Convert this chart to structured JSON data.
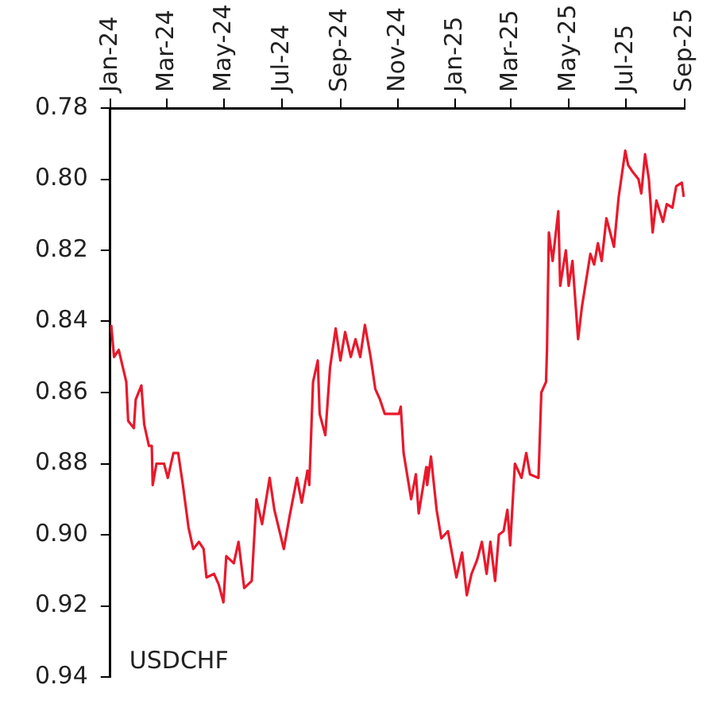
{
  "chart_data": {
    "type": "line",
    "annotations": [
      "USDCHF"
    ],
    "x": [
      "2024-01-02",
      "2024-01-05",
      "2024-01-10",
      "2024-01-18",
      "2024-01-20",
      "2024-01-26",
      "2024-01-28",
      "2024-02-03",
      "2024-02-06",
      "2024-02-11",
      "2024-02-14",
      "2024-02-15",
      "2024-02-19",
      "2024-02-27",
      "2024-03-02",
      "2024-03-08",
      "2024-03-13",
      "2024-03-18",
      "2024-03-24",
      "2024-03-29",
      "2024-04-04",
      "2024-04-09",
      "2024-04-12",
      "2024-04-20",
      "2024-04-25",
      "2024-04-30",
      "2024-05-03",
      "2024-05-11",
      "2024-05-16",
      "2024-05-22",
      "2024-05-30",
      "2024-06-04",
      "2024-06-10",
      "2024-06-18",
      "2024-06-23",
      "2024-07-03",
      "2024-07-09",
      "2024-07-17",
      "2024-07-22",
      "2024-07-28",
      "2024-07-30",
      "2024-08-03",
      "2024-08-08",
      "2024-08-10",
      "2024-08-16",
      "2024-08-21",
      "2024-08-27",
      "2024-09-01",
      "2024-09-06",
      "2024-09-12",
      "2024-09-17",
      "2024-09-22",
      "2024-09-27",
      "2024-10-03",
      "2024-10-08",
      "2024-10-13",
      "2024-10-18",
      "2024-11-02",
      "2024-11-04",
      "2024-11-07",
      "2024-11-15",
      "2024-11-20",
      "2024-11-23",
      "2024-12-01",
      "2024-12-02",
      "2024-12-06",
      "2024-12-12",
      "2024-12-17",
      "2024-12-24",
      "2025-01-02",
      "2025-01-08",
      "2025-01-13",
      "2025-01-18",
      "2025-01-24",
      "2025-01-29",
      "2025-02-03",
      "2025-02-07",
      "2025-02-12",
      "2025-02-16",
      "2025-02-21",
      "2025-02-25",
      "2025-02-28",
      "2025-03-05",
      "2025-03-12",
      "2025-03-17",
      "2025-03-21",
      "2025-03-30",
      "2025-04-02",
      "2025-04-07",
      "2025-04-08",
      "2025-04-10",
      "2025-04-14",
      "2025-04-20",
      "2025-04-22",
      "2025-04-28",
      "2025-05-01",
      "2025-05-05",
      "2025-05-11",
      "2025-05-15",
      "2025-05-21",
      "2025-05-24",
      "2025-05-28",
      "2025-06-01",
      "2025-06-05",
      "2025-06-10",
      "2025-06-18",
      "2025-06-23",
      "2025-06-30",
      "2025-07-03",
      "2025-07-08",
      "2025-07-14",
      "2025-07-17",
      "2025-07-21",
      "2025-07-25",
      "2025-07-29",
      "2025-08-02",
      "2025-08-09",
      "2025-08-13",
      "2025-08-19",
      "2025-08-23",
      "2025-08-29",
      "2025-08-31"
    ],
    "series": [
      {
        "color": "#e8192c",
        "values": [
          0.841,
          0.85,
          0.848,
          0.857,
          0.868,
          0.87,
          0.862,
          0.858,
          0.869,
          0.875,
          0.875,
          0.886,
          0.88,
          0.88,
          0.884,
          0.877,
          0.877,
          0.886,
          0.898,
          0.904,
          0.902,
          0.904,
          0.912,
          0.911,
          0.914,
          0.919,
          0.906,
          0.908,
          0.902,
          0.915,
          0.913,
          0.89,
          0.897,
          0.884,
          0.893,
          0.904,
          0.895,
          0.884,
          0.891,
          0.882,
          0.886,
          0.857,
          0.851,
          0.866,
          0.872,
          0.853,
          0.842,
          0.851,
          0.843,
          0.85,
          0.845,
          0.85,
          0.841,
          0.85,
          0.859,
          0.862,
          0.866,
          0.866,
          0.864,
          0.877,
          0.89,
          0.883,
          0.894,
          0.881,
          0.886,
          0.878,
          0.893,
          0.901,
          0.899,
          0.912,
          0.905,
          0.917,
          0.911,
          0.907,
          0.902,
          0.911,
          0.902,
          0.913,
          0.9,
          0.899,
          0.893,
          0.903,
          0.88,
          0.884,
          0.877,
          0.883,
          0.884,
          0.86,
          0.857,
          0.848,
          0.815,
          0.823,
          0.809,
          0.83,
          0.82,
          0.83,
          0.823,
          0.845,
          0.836,
          0.826,
          0.821,
          0.824,
          0.818,
          0.823,
          0.811,
          0.819,
          0.805,
          0.792,
          0.796,
          0.798,
          0.8,
          0.804,
          0.793,
          0.8,
          0.815,
          0.806,
          0.812,
          0.807,
          0.808,
          0.802,
          0.801,
          0.805
        ]
      }
    ],
    "xlim": [
      "2024-01",
      "2025-09"
    ],
    "xticks": [
      {
        "value": "2024-01",
        "label": "Jan-24"
      },
      {
        "value": "2024-03",
        "label": "Mar-24"
      },
      {
        "value": "2024-05",
        "label": "May-24"
      },
      {
        "value": "2024-07",
        "label": "Jul-24"
      },
      {
        "value": "2024-09",
        "label": "Sep-24"
      },
      {
        "value": "2024-11",
        "label": "Nov-24"
      },
      {
        "value": "2025-01",
        "label": "Jan-25"
      },
      {
        "value": "2025-03",
        "label": "Mar-25"
      },
      {
        "value": "2025-05",
        "label": "May-25"
      },
      {
        "value": "2025-07",
        "label": "Jul-25"
      },
      {
        "value": "2025-09",
        "label": "Sep-25"
      }
    ],
    "ylim": [
      0.94,
      0.78
    ],
    "yticks": [
      0.78,
      {
        "value": 0.8,
        "label": "0.80"
      },
      0.82,
      0.84,
      0.86,
      0.88,
      {
        "value": 0.9,
        "label": "0.90"
      },
      0.92,
      0.94
    ],
    "grid": false,
    "legend": false,
    "marker": "none",
    "line_style": "solid"
  }
}
